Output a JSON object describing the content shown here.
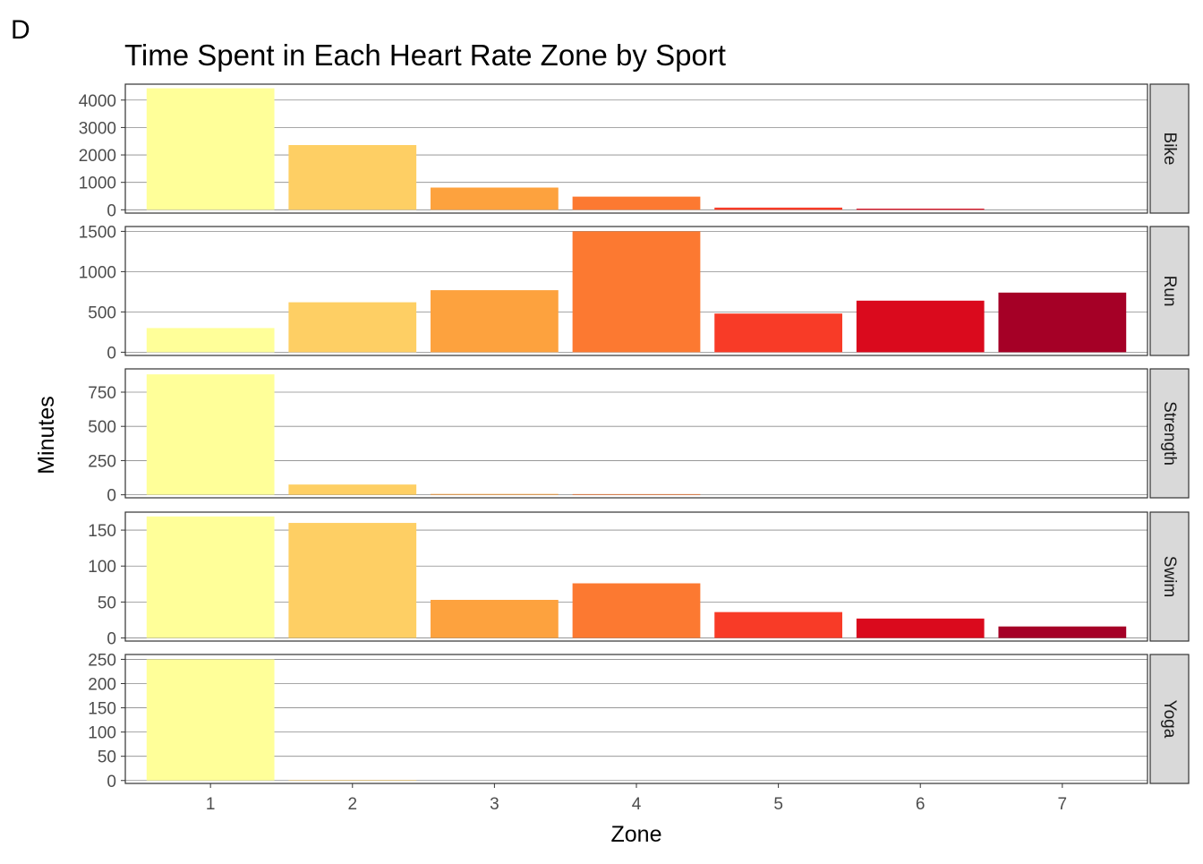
{
  "panel_tag": "D",
  "chart_data": {
    "type": "bar",
    "title": "Time Spent in Each Heart Rate Zone by Sport",
    "xlabel": "Zone",
    "ylabel": "Minutes",
    "categories": [
      "1",
      "2",
      "3",
      "4",
      "5",
      "6",
      "7"
    ],
    "colors": [
      "#FFFF99",
      "#FECF64",
      "#FDA23E",
      "#FC7931",
      "#F83B27",
      "#DA0A1D",
      "#A50026"
    ],
    "grid": true,
    "legend": "none",
    "facets": [
      {
        "name": "Bike",
        "values": [
          4430,
          2360,
          810,
          480,
          80,
          40,
          0
        ],
        "ylim": [
          -120,
          4580
        ],
        "yticks": [
          0,
          1000,
          2000,
          3000,
          4000
        ],
        "ytick_labels": [
          "0",
          "1000",
          "2000",
          "3000",
          "4000"
        ]
      },
      {
        "name": "Run",
        "values": [
          300,
          620,
          770,
          1500,
          480,
          640,
          740
        ],
        "ylim": [
          -40,
          1560
        ],
        "yticks": [
          0,
          500,
          1000,
          1500
        ],
        "ytick_labels": [
          "0",
          "500",
          "1000",
          "1500"
        ]
      },
      {
        "name": "Strength",
        "values": [
          880,
          75,
          6,
          5,
          0,
          0,
          0
        ],
        "ylim": [
          -22,
          920
        ],
        "yticks": [
          0,
          250,
          500,
          750
        ],
        "ytick_labels": [
          "0",
          "250",
          "500",
          "750"
        ]
      },
      {
        "name": "Swim",
        "values": [
          169,
          160,
          53,
          76,
          36,
          27,
          16
        ],
        "ylim": [
          -4.3,
          175
        ],
        "yticks": [
          0,
          50,
          100,
          150
        ],
        "ytick_labels": [
          "0",
          "50",
          "100",
          "150"
        ]
      },
      {
        "name": "Yoga",
        "values": [
          250,
          1,
          0,
          0,
          0,
          0,
          0
        ],
        "ylim": [
          -6,
          260
        ],
        "yticks": [
          0,
          50,
          100,
          150,
          200,
          250
        ],
        "ytick_labels": [
          "0",
          "50",
          "100",
          "150",
          "200",
          "250"
        ]
      }
    ]
  }
}
